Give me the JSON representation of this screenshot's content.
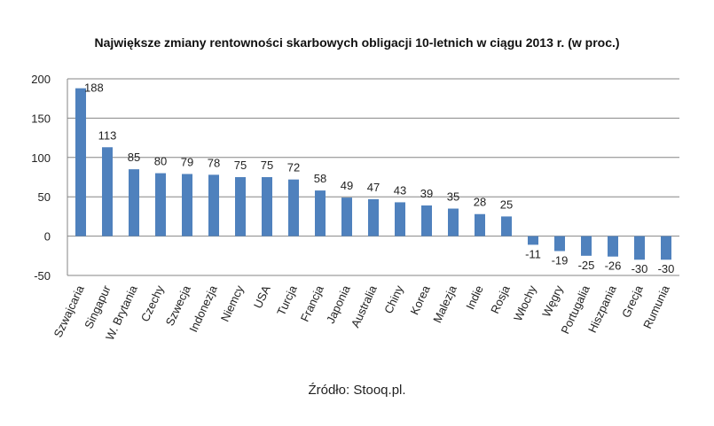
{
  "title": "Największe zmiany rentowności skarbowych obligacji 10-letnich w ciągu 2013 r. (w proc.)",
  "source": "Źródło: Stooq.pl.",
  "colors": {
    "bar": "#4f81bd",
    "grid": "#868686",
    "axis": "#868686",
    "text": "#222222"
  },
  "chart_data": {
    "type": "bar",
    "title": "Największe zmiany rentowności skarbowych obligacji 10-letnich w ciągu 2013 r. (w proc.)",
    "xlabel": "",
    "ylabel": "",
    "ylim": [
      -50,
      200
    ],
    "yticks": [
      200,
      150,
      100,
      50,
      0,
      -50
    ],
    "grid": true,
    "legend": "none",
    "categories": [
      "Szwajcaria",
      "Singapur",
      "W. Brytania",
      "Czechy",
      "Szwecja",
      "Indonezja",
      "Niemcy",
      "USA",
      "Turcja",
      "Francja",
      "Japonia",
      "Australia",
      "Chiny",
      "Korea",
      "Malezja",
      "Indie",
      "Rosja",
      "Włochy",
      "Węgry",
      "Portugalia",
      "Hiszpania",
      "Grecja",
      "Rumunia"
    ],
    "values": [
      188,
      113,
      85,
      80,
      79,
      78,
      75,
      75,
      72,
      58,
      49,
      47,
      43,
      39,
      35,
      28,
      25,
      -11,
      -19,
      -25,
      -26,
      -30,
      -30
    ]
  }
}
